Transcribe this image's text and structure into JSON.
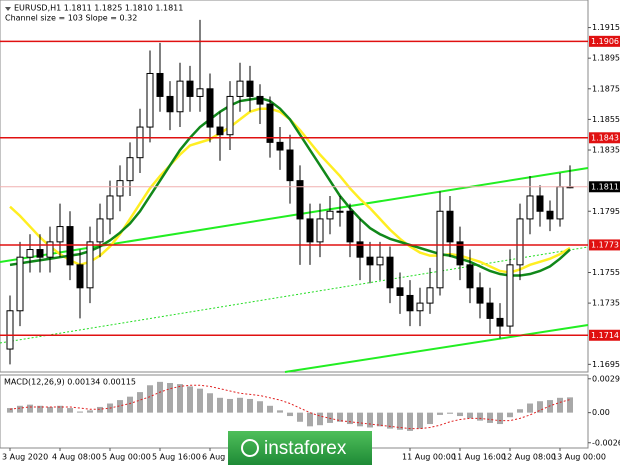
{
  "watermark": "instaforex",
  "chart_data": [
    {
      "type": "candlestick",
      "title": "EURUSD,H1 1.1811 1.1825 1.1810 1.1811",
      "subtitle": "Channel size = 103 Slope = 0.32",
      "categories": [
        "3 Aug 2020",
        null,
        null,
        null,
        null,
        "4 Aug 08:00",
        null,
        null,
        null,
        null,
        "5 Aug 00:00",
        null,
        null,
        null,
        null,
        "5 Aug 16:00",
        null,
        null,
        null,
        null,
        "6 Aug 08:00",
        null,
        null,
        null,
        null,
        null,
        null,
        null,
        null,
        null,
        null,
        null,
        null,
        null,
        null,
        null,
        null,
        null,
        null,
        null,
        "11 Aug 00:00",
        null,
        null,
        null,
        null,
        "11 Aug 16:00",
        null,
        null,
        null,
        null,
        "12 Aug 08:00",
        null,
        null,
        null,
        null,
        "13 Aug 00:00",
        null
      ],
      "open": [
        1.1705,
        1.173,
        1.1765,
        1.177,
        1.1765,
        1.1775,
        1.1785,
        1.176,
        1.1745,
        1.1775,
        1.179,
        1.1805,
        1.1815,
        1.183,
        1.185,
        1.1885,
        1.187,
        1.186,
        1.188,
        1.187,
        1.1875,
        1.185,
        1.1845,
        1.187,
        1.188,
        1.187,
        1.1865,
        1.184,
        1.1835,
        1.1815,
        1.179,
        1.1775,
        1.179,
        1.1795,
        1.1795,
        1.1775,
        1.1765,
        1.176,
        1.1765,
        1.1745,
        1.174,
        1.173,
        1.1735,
        1.1745,
        1.1795,
        1.1775,
        1.176,
        1.1745,
        1.1735,
        1.1725,
        1.172,
        1.176,
        1.179,
        1.1805,
        1.1795,
        1.179,
        1.1811
      ],
      "high": [
        1.174,
        1.1775,
        1.178,
        1.178,
        1.1785,
        1.18,
        1.1795,
        1.177,
        1.1785,
        1.18,
        1.1815,
        1.1825,
        1.184,
        1.1862,
        1.19,
        1.1905,
        1.188,
        1.1892,
        1.189,
        1.192,
        1.1885,
        1.186,
        1.188,
        1.1892,
        1.189,
        1.1878,
        1.187,
        1.185,
        1.1845,
        1.1825,
        1.18,
        1.18,
        1.1805,
        1.1805,
        1.18,
        1.179,
        1.1775,
        1.1775,
        1.1772,
        1.1755,
        1.175,
        1.1745,
        1.1758,
        1.1808,
        1.1805,
        1.1785,
        1.177,
        1.1755,
        1.1745,
        1.1735,
        1.177,
        1.18,
        1.1818,
        1.1812,
        1.1802,
        1.182,
        1.1825
      ],
      "low": [
        1.1695,
        1.172,
        1.1755,
        1.1755,
        1.1755,
        1.1765,
        1.175,
        1.1725,
        1.1735,
        1.1765,
        1.178,
        1.1795,
        1.1805,
        1.182,
        1.184,
        1.186,
        1.1848,
        1.185,
        1.186,
        1.186,
        1.184,
        1.1828,
        1.1835,
        1.186,
        1.186,
        1.1852,
        1.183,
        1.1822,
        1.18,
        1.176,
        1.176,
        1.1765,
        1.178,
        1.1785,
        1.1765,
        1.175,
        1.1748,
        1.175,
        1.1735,
        1.1728,
        1.172,
        1.172,
        1.1728,
        1.174,
        1.1765,
        1.175,
        1.1735,
        1.1725,
        1.1715,
        1.1712,
        1.1715,
        1.175,
        1.178,
        1.1785,
        1.1782,
        1.1785,
        1.181
      ],
      "close": [
        1.173,
        1.1765,
        1.177,
        1.1765,
        1.1775,
        1.1785,
        1.176,
        1.1745,
        1.1775,
        1.179,
        1.1805,
        1.1815,
        1.183,
        1.185,
        1.1885,
        1.187,
        1.186,
        1.188,
        1.187,
        1.1875,
        1.185,
        1.1845,
        1.187,
        1.188,
        1.187,
        1.1865,
        1.184,
        1.1835,
        1.1815,
        1.179,
        1.1775,
        1.179,
        1.1795,
        1.1795,
        1.1775,
        1.1765,
        1.176,
        1.1765,
        1.1745,
        1.174,
        1.173,
        1.1735,
        1.1745,
        1.1795,
        1.1775,
        1.176,
        1.1745,
        1.1735,
        1.1725,
        1.172,
        1.176,
        1.179,
        1.1805,
        1.1795,
        1.179,
        1.1811,
        1.1811
      ],
      "series": [
        {
          "color": "#ffee22",
          "values": [
            1.1798,
            1.1792,
            1.1785,
            1.1778,
            1.1772,
            1.1767,
            1.1763,
            1.176,
            1.1762,
            1.1766,
            1.1772,
            1.178,
            1.179,
            1.18,
            1.181,
            1.1818,
            1.1825,
            1.1832,
            1.1838,
            1.184,
            1.1842,
            1.1846,
            1.185,
            1.1855,
            1.186,
            1.1862,
            1.1862,
            1.186,
            1.1855,
            1.1848,
            1.184,
            1.1832,
            1.1825,
            1.1818,
            1.181,
            1.1803,
            1.1797,
            1.179,
            1.1783,
            1.1777,
            1.1772,
            1.1768,
            1.1766,
            1.1766,
            1.1767,
            1.1766,
            1.1764,
            1.1762,
            1.1759,
            1.1756,
            1.1755,
            1.1757,
            1.176,
            1.1762,
            1.1764,
            1.1767,
            1.1771
          ]
        },
        {
          "color": "#11881a",
          "values": [
            1.176,
            1.1761,
            1.1762,
            1.1763,
            1.1764,
            1.1765,
            1.1766,
            1.1767,
            1.1769,
            1.1772,
            1.1776,
            1.1781,
            1.1787,
            1.1795,
            1.1805,
            1.1815,
            1.1825,
            1.1835,
            1.1843,
            1.185,
            1.1855,
            1.186,
            1.1864,
            1.1867,
            1.1868,
            1.1869,
            1.1867,
            1.1862,
            1.1855,
            1.1845,
            1.1835,
            1.1825,
            1.1815,
            1.1805,
            1.1797,
            1.179,
            1.1784,
            1.178,
            1.1777,
            1.1775,
            1.1773,
            1.1771,
            1.1769,
            1.1767,
            1.1766,
            1.1764,
            1.1762,
            1.1759,
            1.1756,
            1.1754,
            1.1753,
            1.1753,
            1.1754,
            1.1756,
            1.1759,
            1.1764,
            1.177
          ]
        }
      ],
      "levels": [
        1.1906,
        1.1843,
        1.1773,
        1.1714
      ],
      "level_color": "#e01010",
      "last_price": 1.1811,
      "ylim": [
        1.169,
        1.1933
      ],
      "yticks": [
        1.1915,
        1.1895,
        1.1875,
        1.1855,
        1.1835,
        1.1795,
        1.1755,
        1.1735,
        1.1695
      ]
    },
    {
      "type": "bar",
      "title": "MACD(12,26,9) 0.00134 0.00115",
      "color": "#a8a8a8",
      "values": [
        0.0004,
        0.0006,
        0.0007,
        0.0006,
        0.0005,
        0.0006,
        0.0004,
        0.0001,
        0.0002,
        0.0005,
        0.0008,
        0.0011,
        0.0014,
        0.0018,
        0.0024,
        0.0027,
        0.0026,
        0.0025,
        0.0023,
        0.0021,
        0.0017,
        0.0013,
        0.0012,
        0.0013,
        0.0012,
        0.001,
        0.0006,
        0.0002,
        -0.0003,
        -0.0008,
        -0.0012,
        -0.0011,
        -0.0009,
        -0.0008,
        -0.001,
        -0.0012,
        -0.0013,
        -0.0012,
        -0.0014,
        -0.0015,
        -0.0016,
        -0.0014,
        -0.001,
        -0.0002,
        -0.0001,
        -0.0003,
        -0.0005,
        -0.0007,
        -0.0009,
        -0.001,
        -0.0004,
        0.0003,
        0.0008,
        0.001,
        0.0011,
        0.0013,
        0.00134
      ],
      "series": [
        {
          "color": "#e02020",
          "values": [
            0.0003,
            0.0004,
            0.0005,
            0.0005,
            0.0005,
            0.0005,
            0.0005,
            0.0004,
            0.0003,
            0.0003,
            0.0004,
            0.0006,
            0.0008,
            0.0011,
            0.0014,
            0.0018,
            0.0021,
            0.0023,
            0.0024,
            0.0024,
            0.0023,
            0.0021,
            0.0019,
            0.0017,
            0.0016,
            0.0015,
            0.0013,
            0.0011,
            0.0008,
            0.0004,
            0.0,
            -0.0003,
            -0.0005,
            -0.0007,
            -0.0008,
            -0.0009,
            -0.001,
            -0.0011,
            -0.0012,
            -0.0013,
            -0.0014,
            -0.0014,
            -0.0013,
            -0.0011,
            -0.0008,
            -0.0006,
            -0.0005,
            -0.0005,
            -0.0006,
            -0.0007,
            -0.0007,
            -0.0005,
            -0.0002,
            0.0002,
            0.0006,
            0.0009,
            0.00115
          ]
        }
      ],
      "ylim": [
        -0.0031,
        0.0033
      ],
      "yticks": [
        0.00297,
        {
          "value": 0,
          "label": "0.00"
        },
        -0.00264
      ]
    }
  ]
}
